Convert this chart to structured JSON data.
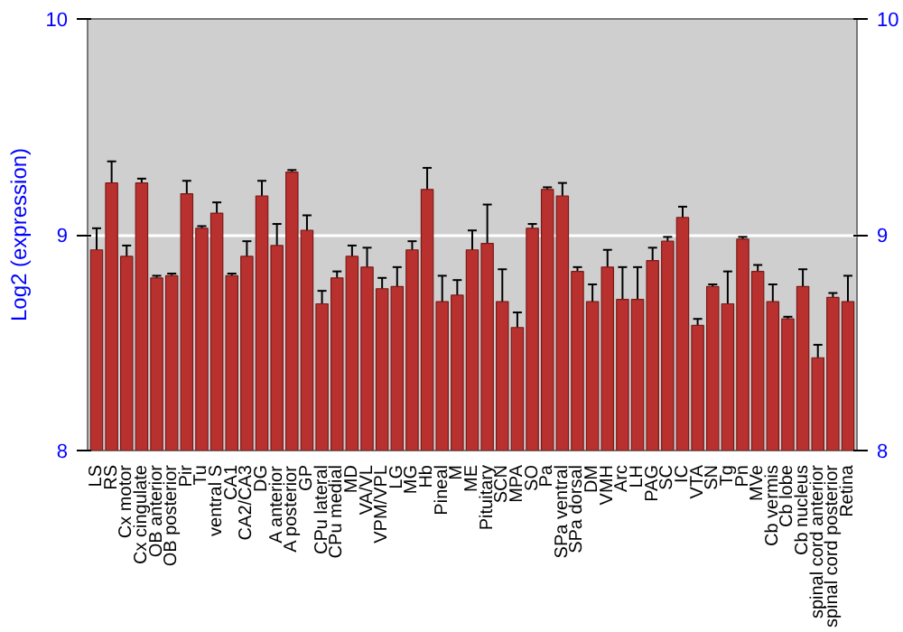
{
  "chart_data": {
    "type": "bar",
    "ylabel": "Log2 (expression)",
    "categories": [
      "LS",
      "RS",
      "Cx motor",
      "Cx cingulate",
      "OB anterior",
      "OB posterior",
      "Pir",
      "Tu",
      "ventral S",
      "CA1",
      "CA2/CA3",
      "DG",
      "A anterior",
      "A posterior",
      "GP",
      "CPu lateral",
      "CPu medial",
      "MD",
      "VA/VL",
      "VPM/VPL",
      "LG",
      "MG",
      "Hb",
      "Pineal",
      "M",
      "ME",
      "Pituitary",
      "SCN",
      "MPA",
      "SO",
      "Pa",
      "SPa ventral",
      "SPa dorsal",
      "DM",
      "VMH",
      "Arc",
      "LH",
      "PAG",
      "SC",
      "IC",
      "VTA",
      "SN",
      "Tg",
      "Pn",
      "MVe",
      "Cb vermis",
      "Cb lobe",
      "Cb nucleus",
      "spinal cord anterior",
      "spinal cord posterior",
      "Retina"
    ],
    "values": [
      8.93,
      9.24,
      8.9,
      9.24,
      8.8,
      8.81,
      9.19,
      9.03,
      9.1,
      8.81,
      8.9,
      9.18,
      8.95,
      9.29,
      9.02,
      8.68,
      8.8,
      8.9,
      8.85,
      8.75,
      8.76,
      8.93,
      9.21,
      8.69,
      8.72,
      8.93,
      8.96,
      8.69,
      8.57,
      9.03,
      9.21,
      9.18,
      8.83,
      8.69,
      8.85,
      8.7,
      8.7,
      8.88,
      8.97,
      9.08,
      8.58,
      8.76,
      8.68,
      8.98,
      8.83,
      8.69,
      8.61,
      8.76,
      8.43,
      8.71,
      8.69
    ],
    "errors": [
      0.1,
      0.1,
      0.05,
      0.02,
      0.01,
      0.01,
      0.06,
      0.01,
      0.05,
      0.01,
      0.07,
      0.07,
      0.1,
      0.01,
      0.07,
      0.06,
      0.03,
      0.05,
      0.09,
      0.05,
      0.09,
      0.04,
      0.1,
      0.12,
      0.07,
      0.09,
      0.18,
      0.15,
      0.07,
      0.02,
      0.01,
      0.06,
      0.02,
      0.08,
      0.08,
      0.15,
      0.15,
      0.06,
      0.02,
      0.05,
      0.03,
      0.01,
      0.15,
      0.01,
      0.03,
      0.08,
      0.01,
      0.08,
      0.06,
      0.02,
      0.12
    ],
    "color": "#b8312f",
    "ylim": [
      8,
      10
    ],
    "yticks": [
      8,
      9,
      10
    ],
    "y2lim": [
      8,
      10
    ],
    "y2ticks": [
      8,
      9,
      10
    ],
    "grid": "y"
  }
}
